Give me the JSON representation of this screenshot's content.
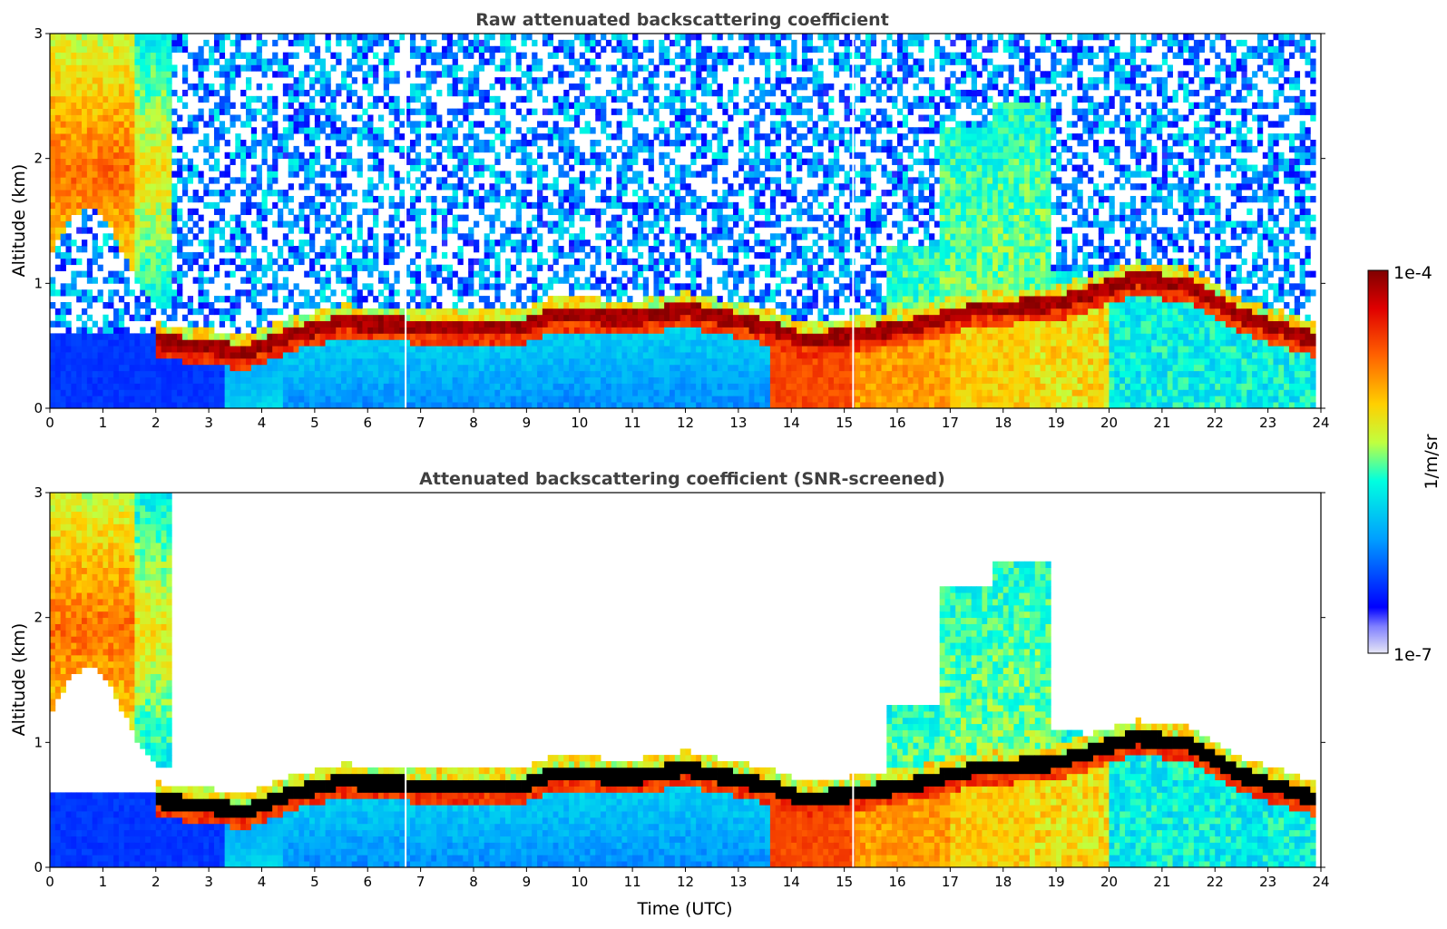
{
  "chart_data": [
    {
      "type": "heatmap",
      "title": "Raw attenuated backscattering coefficient",
      "xlabel": "",
      "ylabel": "Altitude (km)",
      "xlim": [
        0,
        24
      ],
      "ylim": [
        0,
        3
      ],
      "x_ticks": [
        "0",
        "1",
        "2",
        "3",
        "4",
        "5",
        "6",
        "7",
        "8",
        "9",
        "10",
        "11",
        "12",
        "13",
        "14",
        "15",
        "16",
        "17",
        "18",
        "19",
        "20",
        "21",
        "22",
        "23",
        "24"
      ],
      "y_ticks": [
        "0",
        "1",
        "2",
        "3"
      ],
      "screened": false,
      "layer_top_km": [
        {
          "t": 2.0,
          "z": 0.6
        },
        {
          "t": 3.0,
          "z": 0.55
        },
        {
          "t": 3.7,
          "z": 0.5
        },
        {
          "t": 4.5,
          "z": 0.65
        },
        {
          "t": 5.5,
          "z": 0.75
        },
        {
          "t": 7.0,
          "z": 0.72
        },
        {
          "t": 9.0,
          "z": 0.72
        },
        {
          "t": 9.5,
          "z": 0.82
        },
        {
          "t": 11.0,
          "z": 0.78
        },
        {
          "t": 12.0,
          "z": 0.85
        },
        {
          "t": 13.5,
          "z": 0.72
        },
        {
          "t": 14.3,
          "z": 0.6
        },
        {
          "t": 16.0,
          "z": 0.7
        },
        {
          "t": 17.5,
          "z": 0.85
        },
        {
          "t": 19.0,
          "z": 0.9
        },
        {
          "t": 20.5,
          "z": 1.1
        },
        {
          "t": 21.5,
          "z": 1.05
        },
        {
          "t": 22.5,
          "z": 0.8
        },
        {
          "t": 23.8,
          "z": 0.62
        }
      ]
    },
    {
      "type": "heatmap",
      "title": "Attenuated backscattering coefficient (SNR-screened)",
      "xlabel": "Time (UTC)",
      "ylabel": "Altitude (km)",
      "xlim": [
        0,
        24
      ],
      "ylim": [
        0,
        3
      ],
      "x_ticks": [
        "0",
        "1",
        "2",
        "3",
        "4",
        "5",
        "6",
        "7",
        "8",
        "9",
        "10",
        "11",
        "12",
        "13",
        "14",
        "15",
        "16",
        "17",
        "18",
        "19",
        "20",
        "21",
        "22",
        "23",
        "24"
      ],
      "y_ticks": [
        "0",
        "1",
        "2",
        "3"
      ],
      "screened": true,
      "layer_top_km": [
        {
          "t": 2.0,
          "z": 0.6
        },
        {
          "t": 3.0,
          "z": 0.55
        },
        {
          "t": 3.7,
          "z": 0.5
        },
        {
          "t": 4.5,
          "z": 0.65
        },
        {
          "t": 5.5,
          "z": 0.75
        },
        {
          "t": 7.0,
          "z": 0.72
        },
        {
          "t": 9.0,
          "z": 0.72
        },
        {
          "t": 9.5,
          "z": 0.82
        },
        {
          "t": 11.0,
          "z": 0.78
        },
        {
          "t": 12.0,
          "z": 0.85
        },
        {
          "t": 13.5,
          "z": 0.72
        },
        {
          "t": 14.3,
          "z": 0.6
        },
        {
          "t": 16.0,
          "z": 0.7
        },
        {
          "t": 17.5,
          "z": 0.85
        },
        {
          "t": 19.0,
          "z": 0.9
        },
        {
          "t": 20.5,
          "z": 1.1
        },
        {
          "t": 21.5,
          "z": 1.05
        },
        {
          "t": 22.5,
          "z": 0.8
        },
        {
          "t": 23.8,
          "z": 0.62
        }
      ]
    }
  ],
  "colorbar": {
    "label": "1/m/sr",
    "max_label": "1e-4",
    "min_label": "1e-7",
    "scale": "log",
    "range": [
      1e-07,
      0.0001
    ],
    "colors": [
      "#e6e6f5",
      "#0000ff",
      "#00a0ff",
      "#00ffe0",
      "#c0ff40",
      "#ffd000",
      "#ff6000",
      "#e00000",
      "#800000"
    ]
  }
}
